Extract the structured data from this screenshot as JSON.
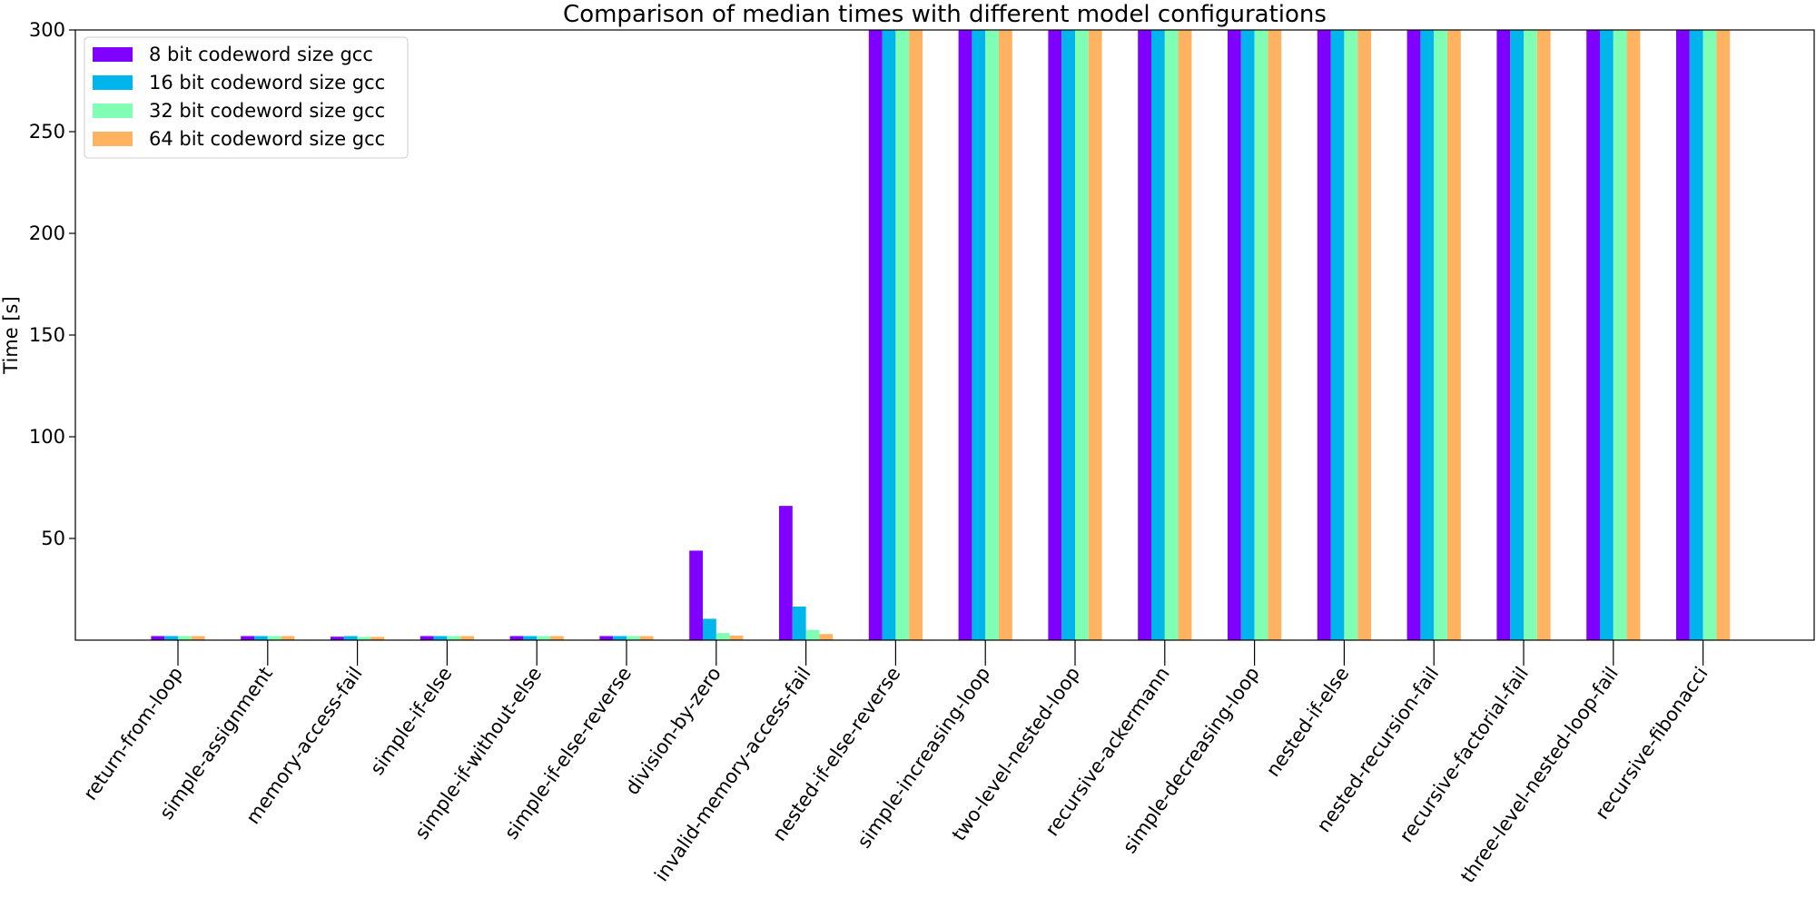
{
  "chart_data": {
    "type": "bar",
    "title": "Comparison of median times with different model configurations",
    "xlabel": "",
    "ylabel": "Time [s]",
    "ylim": [
      0,
      300
    ],
    "yticks": [
      50,
      100,
      150,
      200,
      250,
      300
    ],
    "grid": false,
    "legend_position": "top-left",
    "categories": [
      "return-from-loop",
      "simple-assignment",
      "memory-access-fail",
      "simple-if-else",
      "simple-if-without-else",
      "simple-if-else-reverse",
      "division-by-zero",
      "invalid-memory-access-fail",
      "nested-if-else-reverse",
      "simple-increasing-loop",
      "two-level-nested-loop",
      "recursive-ackermann",
      "simple-decreasing-loop",
      "nested-if-else",
      "nested-recursion-fail",
      "recursive-factorial-fail",
      "three-level-nested-loop-fail",
      "recursive-fibonacci"
    ],
    "series": [
      {
        "name": "8 bit codeword size gcc",
        "color": "#8000ff",
        "values": [
          2,
          2,
          1.7,
          2,
          2,
          2,
          44,
          66,
          300,
          300,
          300,
          300,
          300,
          300,
          300,
          300,
          300,
          300
        ]
      },
      {
        "name": "16 bit codeword size gcc",
        "color": "#00b5eb",
        "values": [
          2,
          2,
          2,
          2,
          2,
          2,
          10.5,
          16.5,
          300,
          300,
          300,
          300,
          300,
          300,
          300,
          300,
          300,
          300
        ]
      },
      {
        "name": "32 bit codeword size gcc",
        "color": "#80ffb4",
        "values": [
          2,
          2,
          1.6,
          2,
          2,
          2,
          3.5,
          5,
          300,
          300,
          300,
          300,
          300,
          300,
          300,
          300,
          300,
          300
        ]
      },
      {
        "name": "64 bit codeword size gcc",
        "color": "#ffb360",
        "values": [
          2,
          2,
          1.6,
          2,
          2,
          2,
          2.2,
          3,
          300,
          300,
          300,
          300,
          300,
          300,
          300,
          300,
          300,
          300
        ]
      }
    ]
  }
}
